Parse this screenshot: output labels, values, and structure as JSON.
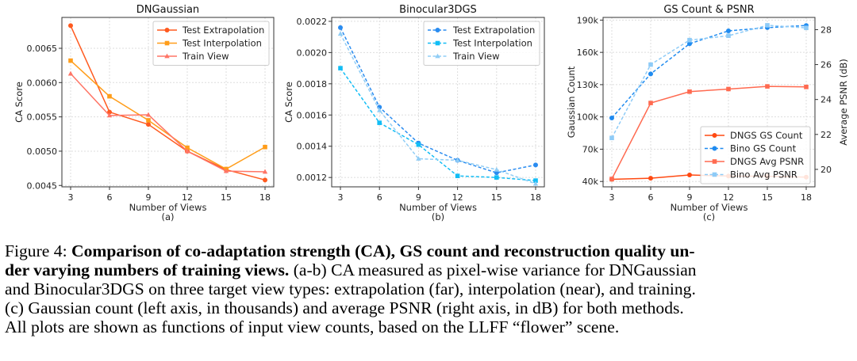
{
  "chart_data": [
    {
      "type": "line",
      "title": "DNGaussian",
      "sublabel": "(a)",
      "xlabel": "Number of Views",
      "ylabel": "CA Score",
      "x": [
        3,
        6,
        9,
        12,
        15,
        18
      ],
      "xticks": [
        "3",
        "6",
        "9",
        "12",
        "15",
        "18"
      ],
      "yticks": [
        "0.0045",
        "0.0050",
        "0.0055",
        "0.0060",
        "0.0065"
      ],
      "ylim": [
        0.00448,
        0.00695
      ],
      "grid": true,
      "legend": "top-right",
      "series": [
        {
          "name": "Test Extrapolation",
          "values": [
            0.00683,
            0.00557,
            0.00539,
            0.005,
            0.00473,
            0.00458
          ],
          "color": "#ff5a1f",
          "marker": "circle",
          "dash": false
        },
        {
          "name": "Test Interpolation",
          "values": [
            0.00632,
            0.0058,
            0.00545,
            0.00505,
            0.00474,
            0.00506
          ],
          "color": "#ff9d1a",
          "marker": "square",
          "dash": false
        },
        {
          "name": "Train View",
          "values": [
            0.00613,
            0.00552,
            0.00553,
            0.005,
            0.00471,
            0.0047
          ],
          "color": "#ff7566",
          "marker": "triangle",
          "dash": false
        }
      ]
    },
    {
      "type": "line",
      "title": "Binocular3DGS",
      "sublabel": "(b)",
      "xlabel": "Number of Views",
      "ylabel": "CA Score",
      "x": [
        3,
        6,
        9,
        12,
        15,
        18
      ],
      "xticks": [
        "3",
        "6",
        "9",
        "12",
        "15",
        "18"
      ],
      "yticks": [
        "0.0012",
        "0.0014",
        "0.0016",
        "0.0018",
        "0.0020",
        "0.0022"
      ],
      "ylim": [
        0.00114,
        0.002225
      ],
      "grid": true,
      "legend": "top-right",
      "series": [
        {
          "name": "Test Extrapolation",
          "values": [
            0.00216,
            0.00165,
            0.00142,
            0.00131,
            0.00123,
            0.00128
          ],
          "color": "#2a8cf0",
          "marker": "circle",
          "dash": true
        },
        {
          "name": "Test Interpolation",
          "values": [
            0.0019,
            0.00155,
            0.00141,
            0.00121,
            0.0012,
            0.00118
          ],
          "color": "#12bdf5",
          "marker": "square",
          "dash": true
        },
        {
          "name": "Train View",
          "values": [
            0.00212,
            0.00163,
            0.00132,
            0.00131,
            0.00125,
            0.00116
          ],
          "color": "#90cdf5",
          "marker": "triangle",
          "dash": true
        }
      ]
    },
    {
      "type": "line",
      "title": "GS Count & PSNR",
      "sublabel": "(c)",
      "xlabel": "Number of Views",
      "ylabel": "Gaussian Count",
      "ylabel_right": "Average PSNR (dB)",
      "x": [
        3,
        6,
        9,
        12,
        15,
        18
      ],
      "xticks": [
        "3",
        "6",
        "9",
        "12",
        "15",
        "18"
      ],
      "yticks": [
        "40k",
        "70k",
        "100k",
        "130k",
        "160k",
        "190k"
      ],
      "yticks_right": [
        "20",
        "22",
        "24",
        "26",
        "28"
      ],
      "ylim": [
        35000,
        192500
      ],
      "ylim_right": [
        19.0,
        28.7
      ],
      "grid": true,
      "legend": "lower-right",
      "series": [
        {
          "name": "DNGS GS Count",
          "axis": "left",
          "values": [
            42000,
            43000,
            46000,
            45000,
            44800,
            44000
          ],
          "color": "#ff4a12",
          "marker": "circle",
          "dash": false
        },
        {
          "name": "Bino GS Count",
          "axis": "left",
          "values": [
            99000,
            140000,
            168000,
            180000,
            183000,
            185000
          ],
          "color": "#1f8bf0",
          "marker": "circle",
          "dash": true
        },
        {
          "name": "DNGS Avg PSNR",
          "axis": "right",
          "values": [
            19.45,
            23.8,
            24.45,
            24.6,
            24.75,
            24.72
          ],
          "color": "#ff6a50",
          "marker": "square",
          "dash": false
        },
        {
          "name": "Bino Avg PSNR",
          "axis": "right",
          "values": [
            21.8,
            26.0,
            27.4,
            27.65,
            28.25,
            28.1
          ],
          "color": "#8ecbf7",
          "marker": "square",
          "dash": true
        }
      ]
    }
  ],
  "caption": {
    "label": "Figure 4:",
    "bold_line1": "Comparison of co-adaptation strength (CA), GS count and reconstruction quality un-",
    "bold_line2": "der varying numbers of training views.",
    "line2_rest": " (a-b) CA measured as pixel-wise variance for DNGaussian",
    "line3": "and Binocular3DGS on three target view types: extrapolation (far), interpolation (near), and training.",
    "line4": "(c) Gaussian count (left axis, in thousands) and average PSNR (right axis, in dB) for both methods.",
    "line5": "All plots are shown as functions of input view counts, based on the LLFF “flower” scene."
  }
}
